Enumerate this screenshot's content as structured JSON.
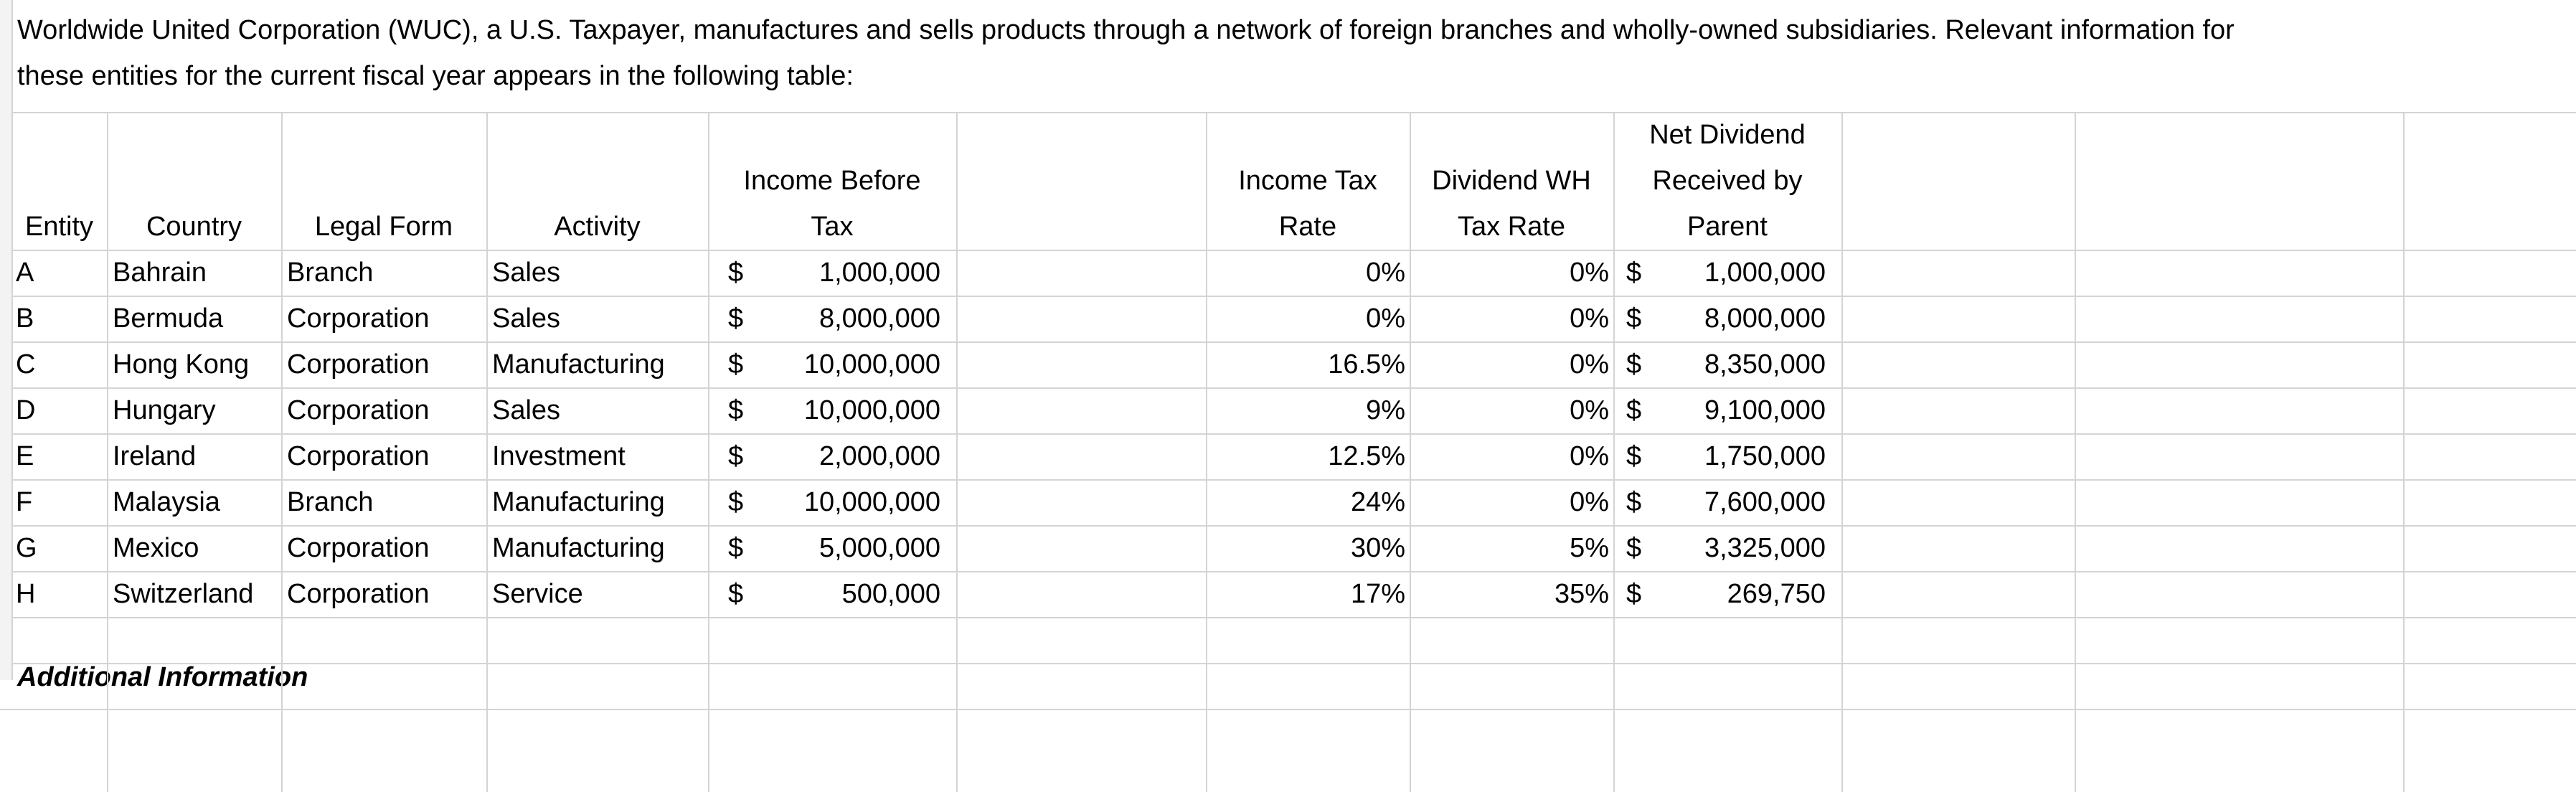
{
  "intro": {
    "line1": "Worldwide United Corporation (WUC), a U.S. Taxpayer, manufactures and sells products through a network of foreign branches and wholly-owned subsidiaries. Relevant information for",
    "line2": "these entities for the current fiscal year appears in the following table:"
  },
  "table": {
    "headers": [
      "Entity",
      "Country",
      "Legal Form",
      "Activity",
      "Income Before Tax",
      "Income Tax Rate",
      "Dividend WH Tax Rate",
      "Net Dividend Received by Parent"
    ],
    "rows": [
      [
        "A",
        "Bahrain",
        "Branch",
        "Sales",
        "$",
        "1,000,000",
        "0%",
        "0%",
        "$",
        "1,000,000"
      ],
      [
        "B",
        "Bermuda",
        "Corporation",
        "Sales",
        "$",
        "8,000,000",
        "0%",
        "0%",
        "$",
        "8,000,000"
      ],
      [
        "C",
        "Hong Kong",
        "Corporation",
        "Manufacturing",
        "$",
        "10,000,000",
        "16.5%",
        "0%",
        "$",
        "8,350,000"
      ],
      [
        "D",
        "Hungary",
        "Corporation",
        "Sales",
        "$",
        "10,000,000",
        "9%",
        "0%",
        "$",
        "9,100,000"
      ],
      [
        "E",
        "Ireland",
        "Corporation",
        "Investment",
        "$",
        "2,000,000",
        "12.5%",
        "0%",
        "$",
        "1,750,000"
      ],
      [
        "F",
        "Malaysia",
        "Branch",
        "Manufacturing",
        "$",
        "10,000,000",
        "24%",
        "0%",
        "$",
        "7,600,000"
      ],
      [
        "G",
        "Mexico",
        "Corporation",
        "Manufacturing",
        "$",
        "5,000,000",
        "30%",
        "5%",
        "$",
        "3,325,000"
      ],
      [
        "H",
        "Switzerland",
        "Corporation",
        "Service",
        "$",
        "500,000",
        "17%",
        "35%",
        "$",
        "269,750"
      ]
    ]
  },
  "footer": {
    "heading": "Additional Information"
  }
}
